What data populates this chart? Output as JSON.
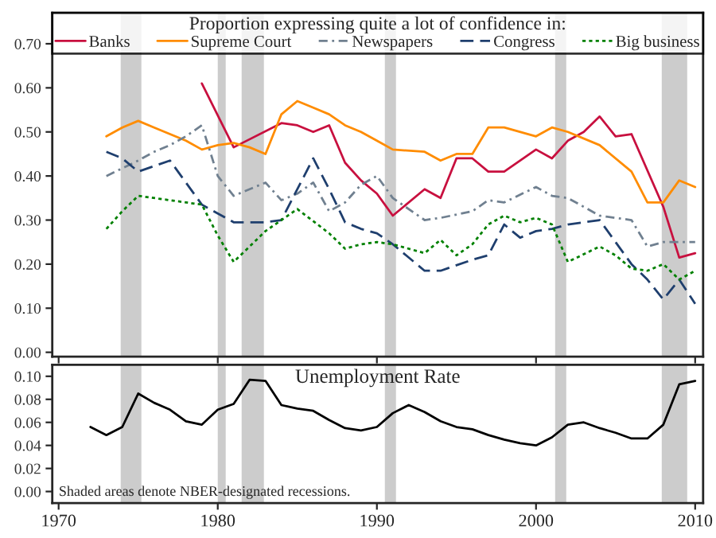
{
  "chart_data": [
    {
      "type": "line",
      "legend_title": "Proportion expressing quite a lot of confidence in:",
      "legend": "top",
      "xlim": [
        1969.6,
        2010.5
      ],
      "xticks": [
        1970,
        1980,
        1990,
        2000,
        2010
      ],
      "ylim": [
        -0.01,
        0.77
      ],
      "yticks": [
        {
          "value": 0,
          "label": "0.00"
        },
        {
          "value": 0.1,
          "label": "0.10"
        },
        {
          "value": 0.2,
          "label": "0.20"
        },
        {
          "value": 0.3,
          "label": "0.30"
        },
        {
          "value": 0.4,
          "label": "0.40"
        },
        {
          "value": 0.5,
          "label": "0.50"
        },
        {
          "value": 0.6,
          "label": "0.60"
        },
        {
          "value": 0.7,
          "label": "0.70"
        }
      ],
      "tick_labels": "y",
      "grid": false,
      "bands": [
        {
          "axis": "x",
          "from": 1973.9,
          "to": 1975.2,
          "color": "#cccccc"
        },
        {
          "axis": "x",
          "from": 1980.0,
          "to": 1980.5,
          "color": "#cccccc"
        },
        {
          "axis": "x",
          "from": 1981.5,
          "to": 1982.9,
          "color": "#cccccc"
        },
        {
          "axis": "x",
          "from": 1990.5,
          "to": 1991.2,
          "color": "#cccccc"
        },
        {
          "axis": "x",
          "from": 2001.2,
          "to": 2001.9,
          "color": "#cccccc"
        },
        {
          "axis": "x",
          "from": 2007.9,
          "to": 2009.5,
          "color": "#cccccc"
        }
      ],
      "series": [
        {
          "name": "Banks",
          "color": "#c8103f",
          "line_style": "solid",
          "x": [
            1979,
            1981,
            1984,
            1985,
            1986,
            1987,
            1988,
            1989,
            1990,
            1991,
            1993,
            1994,
            1995,
            1996,
            1997,
            1998,
            2000,
            2001,
            2002,
            2003,
            2004,
            2005,
            2006,
            2008,
            2009,
            2010
          ],
          "values": [
            0.61,
            0.465,
            0.52,
            0.515,
            0.5,
            0.515,
            0.43,
            0.39,
            0.36,
            0.31,
            0.37,
            0.35,
            0.44,
            0.44,
            0.41,
            0.41,
            0.46,
            0.44,
            0.48,
            0.5,
            0.535,
            0.49,
            0.495,
            0.33,
            0.215,
            0.225
          ]
        },
        {
          "name": "Supreme Court",
          "color": "#ff8c00",
          "line_style": "solid",
          "x": [
            1973,
            1974,
            1975,
            1976,
            1977,
            1978,
            1979,
            1980,
            1981,
            1982,
            1983,
            1984,
            1985,
            1986,
            1987,
            1988,
            1989,
            1990,
            1991,
            1993,
            1994,
            1995,
            1996,
            1997,
            1998,
            2000,
            2001,
            2002,
            2004,
            2006,
            2007,
            2008,
            2009,
            2010
          ],
          "values": [
            0.49,
            0.51,
            0.525,
            0.51,
            0.495,
            0.48,
            0.46,
            0.47,
            0.475,
            0.465,
            0.45,
            0.54,
            0.57,
            0.555,
            0.54,
            0.515,
            0.5,
            0.48,
            0.46,
            0.455,
            0.435,
            0.45,
            0.45,
            0.51,
            0.51,
            0.49,
            0.51,
            0.5,
            0.47,
            0.41,
            0.34,
            0.34,
            0.39,
            0.375
          ]
        },
        {
          "name": "Newspapers",
          "color": "#708090",
          "line_style": "dashdot",
          "x": [
            1973,
            1975,
            1976,
            1977,
            1978,
            1979,
            1980,
            1981,
            1982,
            1983,
            1984,
            1985,
            1986,
            1987,
            1988,
            1989,
            1990,
            1991,
            1993,
            1994,
            1996,
            1997,
            1998,
            2000,
            2001,
            2002,
            2004,
            2006,
            2007,
            2008,
            2010
          ],
          "values": [
            0.4,
            0.435,
            0.455,
            0.47,
            0.49,
            0.515,
            0.4,
            0.355,
            0.37,
            0.385,
            0.345,
            0.36,
            0.385,
            0.32,
            0.34,
            0.38,
            0.4,
            0.35,
            0.3,
            0.305,
            0.32,
            0.345,
            0.34,
            0.375,
            0.355,
            0.35,
            0.31,
            0.3,
            0.24,
            0.25,
            0.25
          ]
        },
        {
          "name": "Congress",
          "color": "#1f3f6e",
          "line_style": "dashed",
          "x": [
            1973,
            1974,
            1975,
            1977,
            1978,
            1979,
            1980,
            1981,
            1983,
            1984,
            1986,
            1987,
            1988,
            1989,
            1990,
            1991,
            1993,
            1994,
            1996,
            1997,
            1998,
            1999,
            2000,
            2001,
            2002,
            2004,
            2006,
            2007,
            2008,
            2009,
            2010
          ],
          "values": [
            0.455,
            0.44,
            0.41,
            0.435,
            0.385,
            0.335,
            0.315,
            0.295,
            0.295,
            0.3,
            0.44,
            0.37,
            0.295,
            0.28,
            0.27,
            0.245,
            0.185,
            0.185,
            0.21,
            0.22,
            0.29,
            0.26,
            0.275,
            0.28,
            0.29,
            0.3,
            0.2,
            0.165,
            0.12,
            0.165,
            0.11
          ]
        },
        {
          "name": "Big business",
          "color": "#008000",
          "line_style": "dotted",
          "x": [
            1973,
            1974,
            1975,
            1977,
            1979,
            1980,
            1981,
            1983,
            1984,
            1985,
            1987,
            1988,
            1989,
            1990,
            1991,
            1993,
            1994,
            1995,
            1996,
            1997,
            1998,
            1999,
            2000,
            2001,
            2002,
            2004,
            2005,
            2006,
            2007,
            2008,
            2009,
            2010
          ],
          "values": [
            0.28,
            0.32,
            0.355,
            0.345,
            0.335,
            0.265,
            0.205,
            0.275,
            0.3,
            0.325,
            0.27,
            0.235,
            0.245,
            0.25,
            0.245,
            0.225,
            0.255,
            0.22,
            0.245,
            0.29,
            0.31,
            0.295,
            0.305,
            0.29,
            0.205,
            0.24,
            0.22,
            0.19,
            0.185,
            0.2,
            0.165,
            0.185
          ]
        }
      ]
    },
    {
      "type": "line",
      "title": "Unemployment Rate",
      "legend": false,
      "grid": false,
      "annotations": [
        "Shaded areas denote NBER-designated recessions."
      ],
      "xlim": [
        1969.6,
        2010.5
      ],
      "xticks": [
        1970,
        1980,
        1990,
        2000,
        2010
      ],
      "ylim": [
        -0.01,
        0.11
      ],
      "yticks": [
        {
          "value": 0,
          "label": "0.00"
        },
        {
          "value": 0.02,
          "label": "0.02"
        },
        {
          "value": 0.04,
          "label": "0.04"
        },
        {
          "value": 0.06,
          "label": "0.06"
        },
        {
          "value": 0.08,
          "label": "0.08"
        },
        {
          "value": 0.1,
          "label": "0.10"
        }
      ],
      "bands": [
        {
          "axis": "x",
          "from": 1973.9,
          "to": 1975.2,
          "color": "#cccccc"
        },
        {
          "axis": "x",
          "from": 1980.0,
          "to": 1980.5,
          "color": "#cccccc"
        },
        {
          "axis": "x",
          "from": 1981.5,
          "to": 1982.9,
          "color": "#cccccc"
        },
        {
          "axis": "x",
          "from": 1990.5,
          "to": 1991.2,
          "color": "#cccccc"
        },
        {
          "axis": "x",
          "from": 2001.2,
          "to": 2001.9,
          "color": "#cccccc"
        },
        {
          "axis": "x",
          "from": 2007.9,
          "to": 2009.5,
          "color": "#cccccc"
        }
      ],
      "series": [
        {
          "color": "#000000",
          "line_style": "solid",
          "x": [
            1972,
            1973,
            1974,
            1975,
            1976,
            1977,
            1978,
            1979,
            1980,
            1981,
            1982,
            1983,
            1984,
            1985,
            1986,
            1987,
            1988,
            1989,
            1990,
            1991,
            1992,
            1993,
            1994,
            1995,
            1996,
            1997,
            1998,
            1999,
            2000,
            2001,
            2002,
            2003,
            2004,
            2005,
            2006,
            2007,
            2008,
            2009,
            2010
          ],
          "values": [
            0.056,
            0.049,
            0.056,
            0.085,
            0.077,
            0.071,
            0.061,
            0.058,
            0.071,
            0.076,
            0.097,
            0.096,
            0.075,
            0.072,
            0.07,
            0.062,
            0.055,
            0.053,
            0.056,
            0.068,
            0.075,
            0.069,
            0.061,
            0.056,
            0.054,
            0.049,
            0.045,
            0.042,
            0.04,
            0.047,
            0.058,
            0.06,
            0.055,
            0.051,
            0.046,
            0.046,
            0.058,
            0.093,
            0.096
          ]
        }
      ]
    }
  ]
}
